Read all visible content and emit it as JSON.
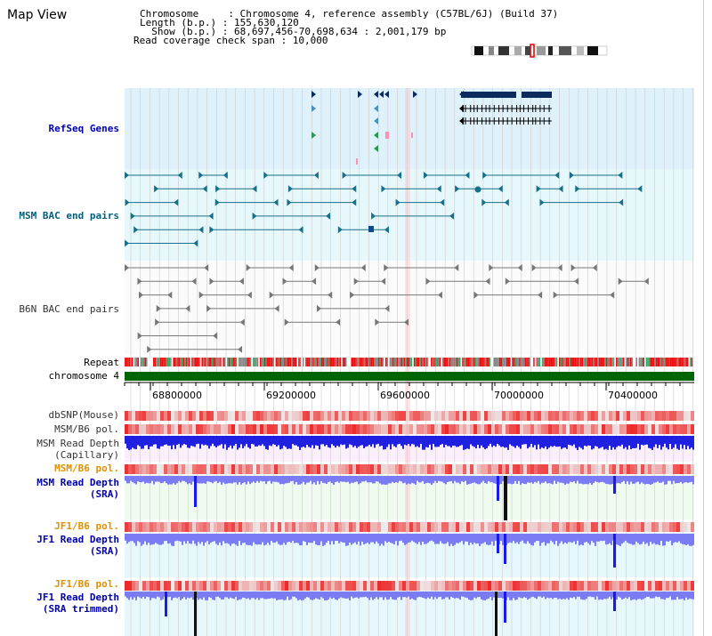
{
  "view_title": "Map View",
  "header": {
    "chromosome_line": "Chromosome     : Chromosome 4, reference assembly (C57BL/6J) (Build 37)",
    "length_line": "Length (b.p.) : 155,630,120",
    "show_line": "  Show (b.p.) : 68,697,456-70,698,634 : 2,001,179 bp",
    "coverage_line": "Read coverage check span : 10,000"
  },
  "tracks": {
    "refseq": "RefSeq Genes",
    "msm_bac": "MSM BAC end pairs",
    "b6n_bac": "B6N BAC end pairs",
    "repeat": "Repeat",
    "chromosome": "chromosome 4",
    "dbsnp": "dbSNP(Mouse)",
    "msm_b6_pol_1": "MSM/B6 pol.",
    "msm_read_depth_cap_1": "MSM Read Depth",
    "msm_read_depth_cap_2": "(Capillary)",
    "msm_b6_pol_2": "MSM/B6 pol.",
    "msm_read_depth_sra_1": "MSM Read Depth",
    "msm_read_depth_sra_2": "(SRA)",
    "jf1_b6_pol_1": "JF1/B6 pol.",
    "jf1_read_depth_sra_1": "JF1 Read Depth",
    "jf1_read_depth_sra_2": "(SRA)",
    "jf1_b6_pol_2": "JF1/B6 pol.",
    "jf1_read_depth_trim_1": "JF1 Read Depth",
    "jf1_read_depth_trim_2": "(SRA trimmed)"
  },
  "axis": {
    "ticks": [
      "68800000",
      "69200000",
      "69600000",
      "70000000",
      "70400000"
    ]
  },
  "colors": {
    "refseq_bg": "#dff2fb",
    "msm_bac_bg": "#e6f8fb",
    "b6n_bac_bg": "#fbfbfb",
    "gene_dark": "#0b2a5e",
    "bac_teal": "#17708a",
    "bac_grey": "#777777",
    "chromosome_green": "#006400",
    "depth_blue": "#1a1aee",
    "depth_lightblue": "#7b7bf4",
    "pol_red": "#ee2222",
    "highlight_pink": "#ffb6c1"
  }
}
